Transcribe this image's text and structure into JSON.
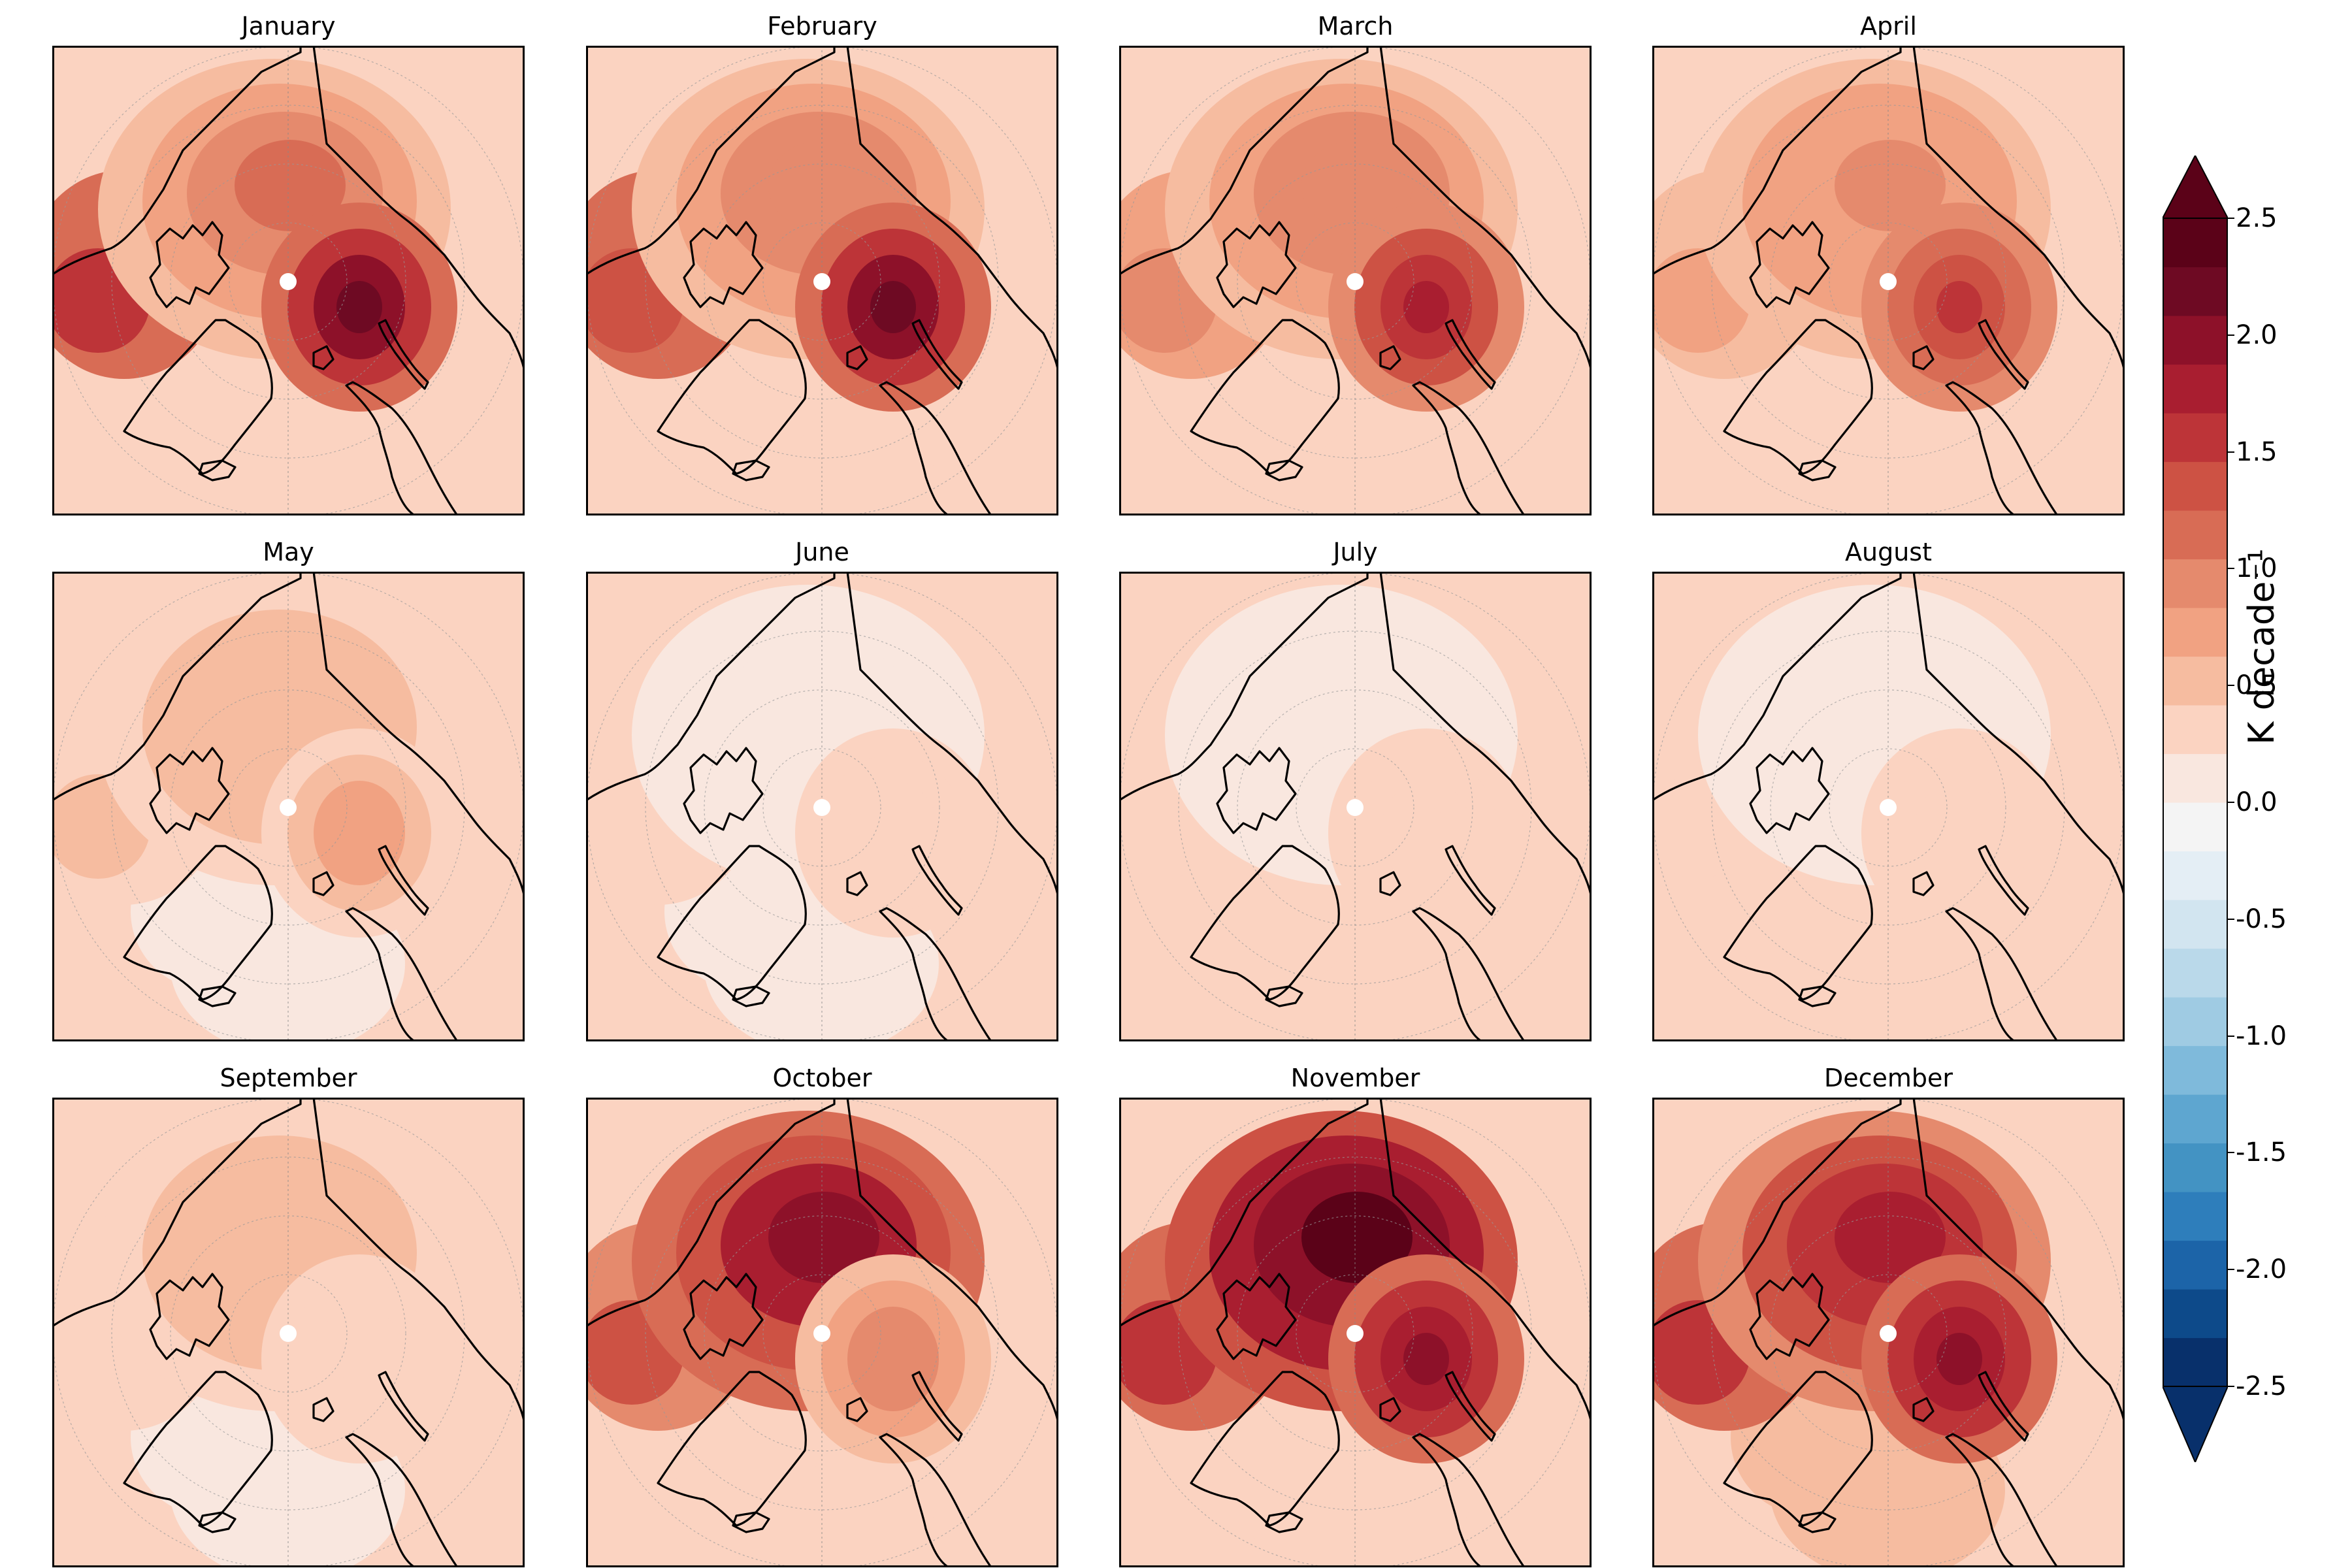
{
  "panels": [
    {
      "title": "January",
      "intensity": {
        "center": 1.1,
        "siberia": 2.2,
        "greenland": 0.3,
        "canada": 1.6,
        "atlantic": 0.3
      }
    },
    {
      "title": "February",
      "intensity": {
        "center": 1.0,
        "siberia": 2.1,
        "greenland": 0.4,
        "canada": 1.4,
        "atlantic": 0.4
      }
    },
    {
      "title": "March",
      "intensity": {
        "center": 1.0,
        "siberia": 1.8,
        "greenland": 0.3,
        "canada": 1.0,
        "atlantic": 0.3
      }
    },
    {
      "title": "April",
      "intensity": {
        "center": 0.9,
        "siberia": 1.6,
        "greenland": 0.3,
        "canada": 0.8,
        "atlantic": 0.3
      }
    },
    {
      "title": "May",
      "intensity": {
        "center": 0.6,
        "siberia": 0.7,
        "greenland": 0.2,
        "canada": 0.5,
        "atlantic": 0.2
      }
    },
    {
      "title": "June",
      "intensity": {
        "center": 0.1,
        "siberia": 0.4,
        "greenland": 0.2,
        "canada": 0.4,
        "atlantic": 0.2
      }
    },
    {
      "title": "July",
      "intensity": {
        "center": 0.1,
        "siberia": 0.4,
        "greenland": 0.3,
        "canada": 0.4,
        "atlantic": 0.3
      }
    },
    {
      "title": "August",
      "intensity": {
        "center": 0.1,
        "siberia": 0.4,
        "greenland": 0.3,
        "canada": 0.4,
        "atlantic": 0.3
      }
    },
    {
      "title": "September",
      "intensity": {
        "center": 0.6,
        "siberia": 0.4,
        "greenland": 0.2,
        "canada": 0.4,
        "atlantic": 0.2
      }
    },
    {
      "title": "October",
      "intensity": {
        "center": 1.9,
        "siberia": 1.0,
        "greenland": 0.3,
        "canada": 1.3,
        "atlantic": 0.3
      }
    },
    {
      "title": "November",
      "intensity": {
        "center": 2.3,
        "siberia": 2.0,
        "greenland": 0.4,
        "canada": 1.5,
        "atlantic": 0.4
      }
    },
    {
      "title": "December",
      "intensity": {
        "center": 1.8,
        "siberia": 2.0,
        "greenland": 0.5,
        "canada": 1.5,
        "atlantic": 0.5
      }
    }
  ],
  "colorbar": {
    "label": "K decade⁻¹",
    "min": -2.5,
    "max": 2.5,
    "step": 0.25,
    "ticks": [
      "2.5",
      "2.0",
      "1.5",
      "1.0",
      "0.5",
      "0.0",
      "-0.5",
      "-1.0",
      "-1.5",
      "-2.0",
      "-2.5"
    ],
    "extend": "both",
    "colors": [
      "#08306b",
      "#0d4a8a",
      "#1c64a8",
      "#2e7ebb",
      "#4393c3",
      "#5ea6d0",
      "#7fbadb",
      "#9fcbe3",
      "#bad9ea",
      "#d2e5f0",
      "#e4eef5",
      "#f4f4f4",
      "#f9e7df",
      "#fbd3c1",
      "#f6bca0",
      "#f1a282",
      "#e58a6d",
      "#d86c55",
      "#cd5244",
      "#bd3438",
      "#a91e30",
      "#8d1129",
      "#6e0a23",
      "#5b0218"
    ]
  }
}
